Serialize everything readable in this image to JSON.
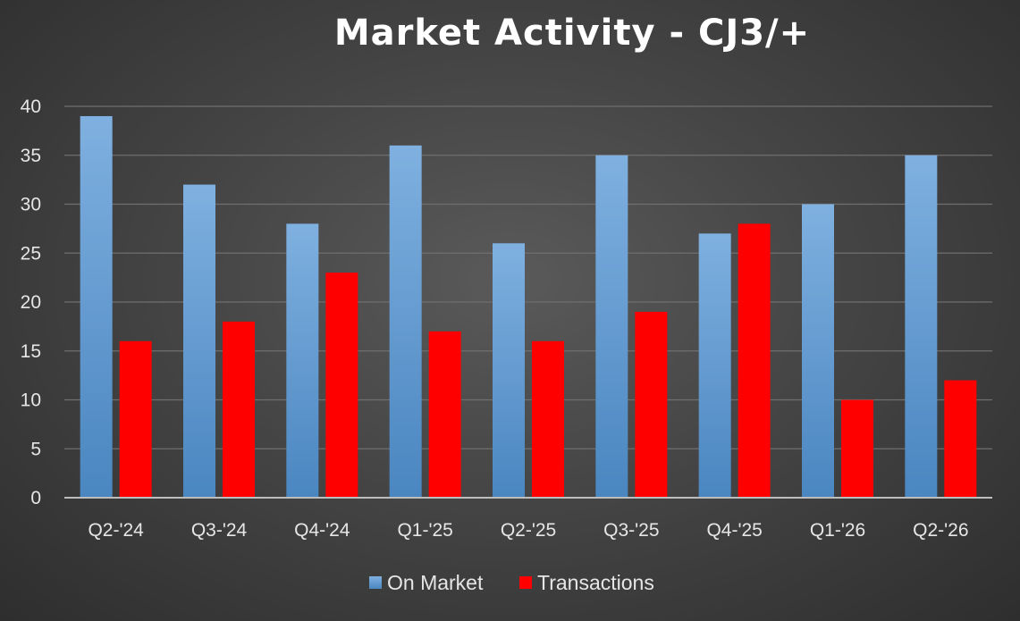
{
  "chart_data": {
    "type": "bar",
    "title": "Market Activity - CJ3/+",
    "categories": [
      "Q2-'24",
      "Q3-'24",
      "Q4-'24",
      "Q1-'25",
      "Q2-'25",
      "Q3-'25",
      "Q4-'25",
      "Q1-'26",
      "Q2-'26"
    ],
    "series": [
      {
        "name": "On Market",
        "values": [
          39,
          32,
          28,
          36,
          26,
          35,
          27,
          30,
          35
        ],
        "color": "#5b9bd5"
      },
      {
        "name": "Transactions",
        "values": [
          16,
          18,
          23,
          17,
          16,
          19,
          28,
          10,
          12
        ],
        "color": "#ff0000"
      }
    ],
    "ylim": [
      0,
      40
    ],
    "yticks": [
      0,
      5,
      10,
      15,
      20,
      25,
      30,
      35,
      40
    ],
    "grid": true,
    "legend_position": "bottom",
    "xlabel": "",
    "ylabel": ""
  }
}
